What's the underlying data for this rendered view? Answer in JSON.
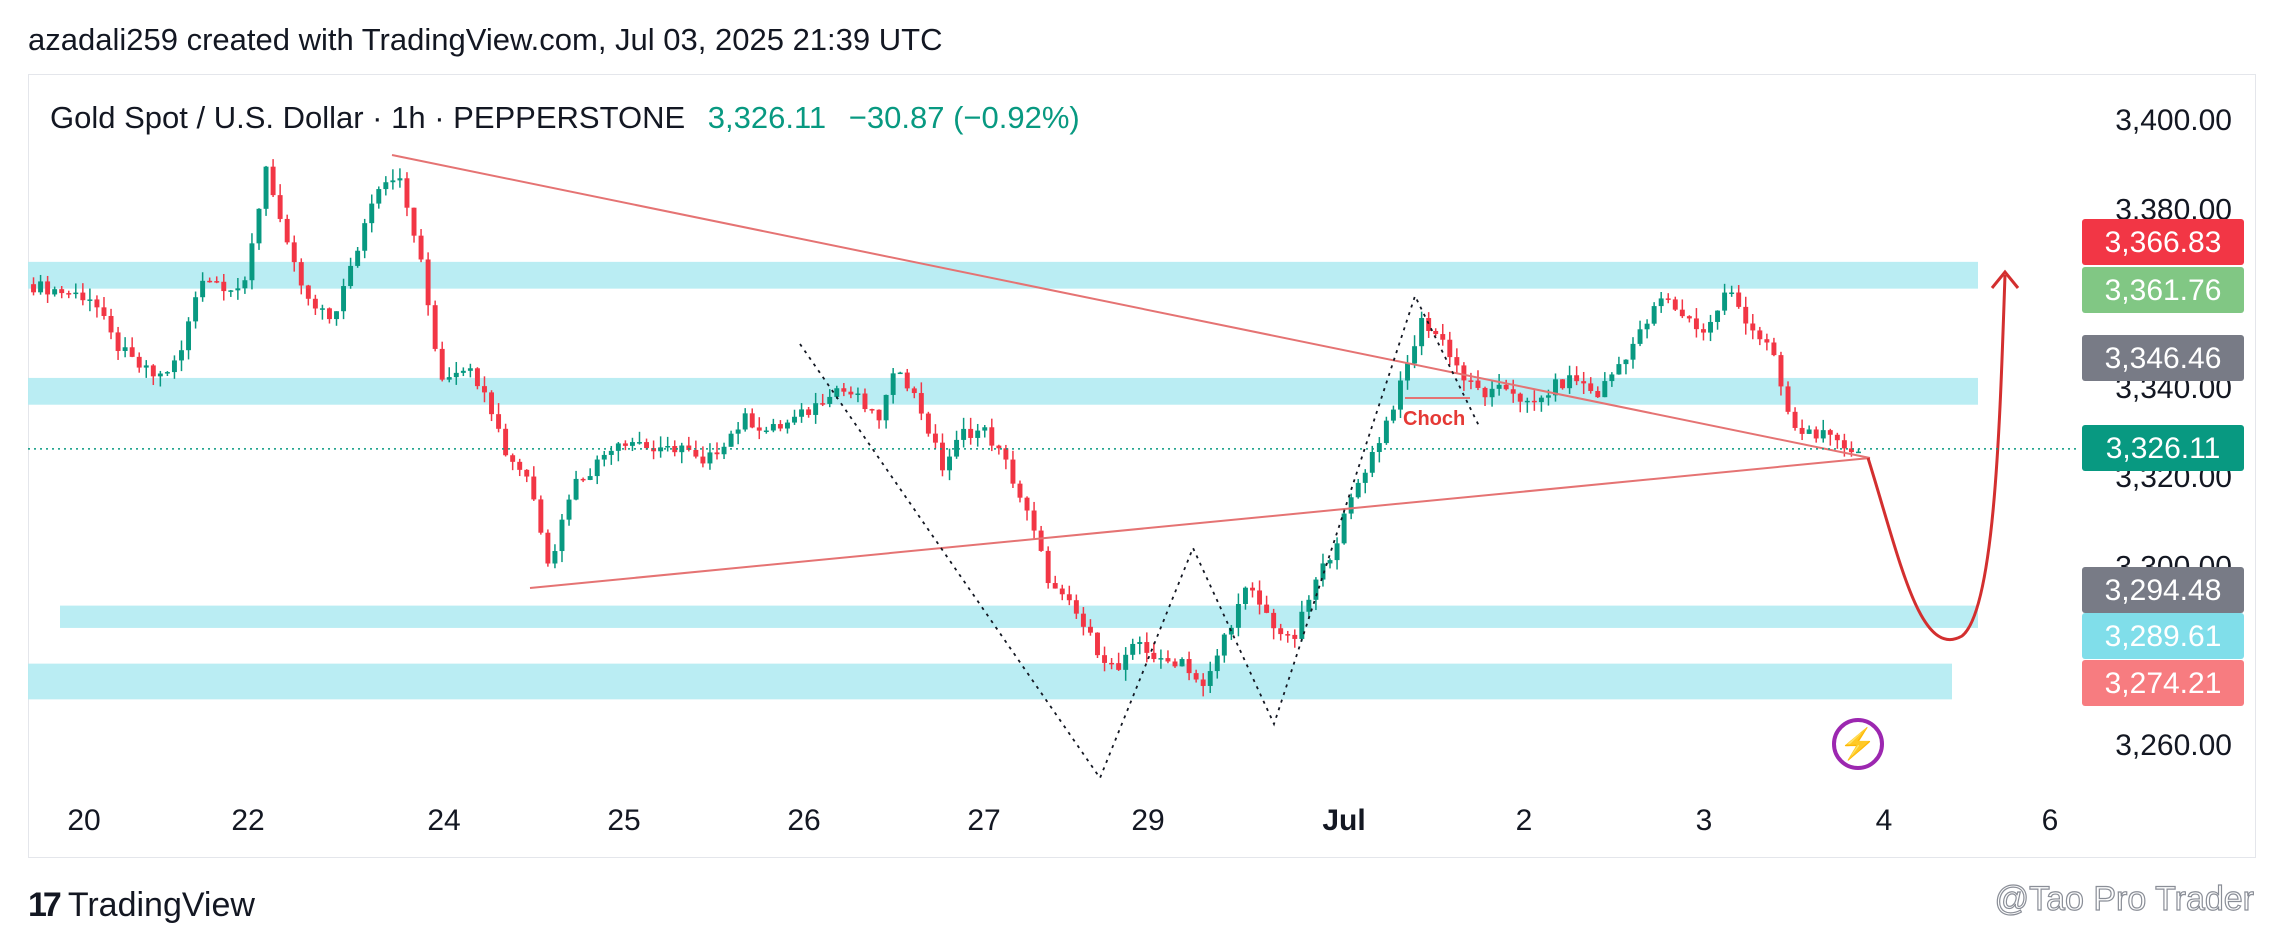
{
  "header": {
    "text": "azadali259 created with TradingView.com, Jul 03, 2025 21:39 UTC"
  },
  "legend": {
    "symbol": "Gold Spot / U.S. Dollar · 1h · PEPPERSTONE",
    "price": "3,326.11",
    "change": "−30.87 (−0.92%)"
  },
  "footer": {
    "brand": "TradingView",
    "watermark": "@Tao Pro Trader"
  },
  "colors": {
    "up": "#089981",
    "down": "#f23645",
    "zone": "#b2ebf2",
    "trend": "#e57373"
  },
  "chart_data": {
    "type": "candlestick",
    "symbol": "XAUUSD",
    "timeframe": "1h",
    "ylim": [
      3250,
      3405
    ],
    "y_ticks": [
      "3,400.00",
      "3,380.00",
      "3,340.00",
      "3,320.00",
      "3,300.00",
      "3,260.00"
    ],
    "y_tick_values": [
      3400,
      3380,
      3340,
      3320,
      3300,
      3260
    ],
    "x_ticks": [
      "20",
      "22",
      "24",
      "25",
      "26",
      "27",
      "29",
      "Jul",
      "2",
      "3",
      "4",
      "6"
    ],
    "price_labels": [
      {
        "text": "3,366.83",
        "value": 3366.83,
        "color": "#f23645"
      },
      {
        "text": "3,361.76",
        "value": 3361.76,
        "color": "#81c784"
      },
      {
        "text": "3,346.46",
        "value": 3346.46,
        "color": "#787b86"
      },
      {
        "text": "3,326.11",
        "value": 3326.11,
        "color": "#089981"
      },
      {
        "text": "3,294.48",
        "value": 3294.48,
        "color": "#787b86"
      },
      {
        "text": "3,289.61",
        "value": 3289.61,
        "color": "#80deea"
      },
      {
        "text": "3,274.21",
        "value": 3274.21,
        "color": "#f77c80"
      }
    ],
    "zones": [
      {
        "from": 3362,
        "to": 3368
      },
      {
        "from": 3336,
        "to": 3342
      },
      {
        "from": 3286,
        "to": 3291
      },
      {
        "from": 3270,
        "to": 3278
      }
    ],
    "annotations": [
      {
        "text": "Choch"
      }
    ],
    "path_points": [
      3363,
      3362,
      3361,
      3360,
      3350,
      3345,
      3342,
      3346,
      3365,
      3363,
      3362,
      3390,
      3370,
      3358,
      3355,
      3368,
      3385,
      3388,
      3370,
      3342,
      3345,
      3340,
      3325,
      3320,
      3300,
      3318,
      3322,
      3328,
      3328,
      3325,
      3327,
      3322,
      3328,
      3333,
      3330,
      3332,
      3335,
      3340,
      3338,
      3332,
      3345,
      3335,
      3322,
      3330,
      3330,
      3322,
      3310,
      3295,
      3290,
      3282,
      3276,
      3283,
      3278,
      3279,
      3272,
      3285,
      3295,
      3288,
      3282,
      3295,
      3305,
      3318,
      3328,
      3340,
      3355,
      3350,
      3341,
      3338,
      3340,
      3335,
      3340,
      3342,
      3338,
      3345,
      3352,
      3360,
      3356,
      3352,
      3362,
      3354,
      3348,
      3330,
      3330,
      3327,
      3326
    ]
  }
}
